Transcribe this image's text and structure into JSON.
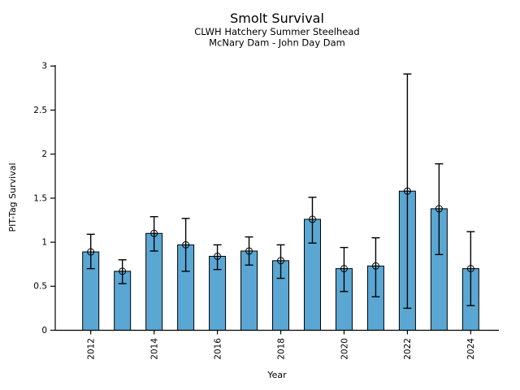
{
  "chart_data": {
    "type": "bar",
    "title": "Smolt Survival",
    "subtitles": [
      "CLWH Hatchery Summer Steelhead",
      "McNary Dam - John Day Dam"
    ],
    "xlabel": "Year",
    "ylabel": "PIT-Tag Survival",
    "ylim": [
      0,
      3
    ],
    "yticks": [
      0,
      0.5,
      1,
      1.5,
      2,
      2.5,
      3
    ],
    "ytick_labels": [
      "0",
      "0.5",
      "1",
      "1.5",
      "2",
      "2.5",
      "3"
    ],
    "xtick_years": [
      2012,
      2014,
      2016,
      2018,
      2020,
      2022,
      2024
    ],
    "categories": [
      2012,
      2013,
      2014,
      2015,
      2016,
      2017,
      2018,
      2019,
      2020,
      2021,
      2022,
      2023,
      2024
    ],
    "values": [
      0.89,
      0.67,
      1.1,
      0.97,
      0.84,
      0.9,
      0.79,
      1.26,
      0.7,
      0.73,
      1.58,
      1.38,
      0.7
    ],
    "error_low": [
      0.7,
      0.53,
      0.9,
      0.67,
      0.69,
      0.74,
      0.59,
      0.99,
      0.44,
      0.38,
      0.25,
      0.86,
      0.28
    ],
    "error_high": [
      1.09,
      0.8,
      1.29,
      1.27,
      0.97,
      1.06,
      0.97,
      1.51,
      0.94,
      1.05,
      2.91,
      1.89,
      1.12
    ],
    "bar_color": "#5aa7d4",
    "bar_edge_color": "#000000",
    "error_color": "#000000",
    "text_color": "#000000",
    "marker": "circle-plus",
    "grid": false,
    "legend": false
  }
}
